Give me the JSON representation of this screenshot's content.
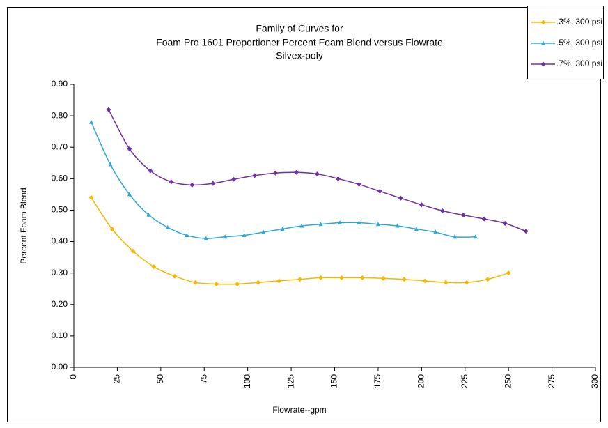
{
  "chart_data": {
    "type": "line",
    "title": [
      "Family of Curves for",
      "Foam Pro 1601 Proportioner Percent Foam Blend versus Flowrate",
      "Silvex-poly"
    ],
    "x_label": "Flowrate--gpm",
    "y_label": "Percent Foam Blend",
    "xlim": [
      0,
      300
    ],
    "xticks": [
      0,
      25,
      50,
      75,
      100,
      125,
      150,
      175,
      200,
      225,
      250,
      275,
      300
    ],
    "ylim": [
      0,
      0.9
    ],
    "yticks": [
      {
        "value": 0,
        "label": "0.00"
      },
      {
        "value": 0.1,
        "label": "0.10"
      },
      {
        "value": 0.2,
        "label": "0.20"
      },
      {
        "value": 0.3,
        "label": "0.30"
      },
      {
        "value": 0.4,
        "label": "0.40"
      },
      {
        "value": 0.5,
        "label": "0.50"
      },
      {
        "value": 0.6,
        "label": "0.60"
      },
      {
        "value": 0.7,
        "label": "0.70"
      },
      {
        "value": 0.8,
        "label": "0.80"
      },
      {
        "value": 0.9,
        "label": "0.90"
      }
    ],
    "legend": "top-right",
    "series": [
      {
        "name": ".3%, 300 psi",
        "color": "#f5b800",
        "marker": "diamond",
        "x": [
          10,
          22,
          34,
          46,
          58,
          70,
          82,
          94,
          106,
          118,
          130,
          142,
          154,
          166,
          178,
          190,
          202,
          214,
          226,
          238,
          250
        ],
        "values": [
          0.54,
          0.44,
          0.37,
          0.32,
          0.29,
          0.27,
          0.265,
          0.265,
          0.27,
          0.275,
          0.28,
          0.285,
          0.285,
          0.285,
          0.283,
          0.28,
          0.275,
          0.27,
          0.27,
          0.28,
          0.3
        ]
      },
      {
        "name": ".5%, 300 psi",
        "color": "#2ea8d8",
        "marker": "triangle",
        "x": [
          10,
          21,
          32,
          43,
          54,
          65,
          76,
          87,
          98,
          109,
          120,
          131,
          142,
          153,
          164,
          175,
          186,
          197,
          208,
          219,
          231
        ],
        "values": [
          0.78,
          0.645,
          0.55,
          0.485,
          0.445,
          0.42,
          0.41,
          0.415,
          0.42,
          0.43,
          0.44,
          0.45,
          0.455,
          0.46,
          0.46,
          0.455,
          0.45,
          0.44,
          0.43,
          0.415,
          0.415
        ]
      },
      {
        "name": ".7%, 300 psi",
        "color": "#7030a0",
        "marker": "diamond",
        "x": [
          20,
          32,
          44,
          56,
          68,
          80,
          92,
          104,
          116,
          128,
          140,
          152,
          164,
          176,
          188,
          200,
          212,
          224,
          236,
          248,
          260
        ],
        "values": [
          0.82,
          0.695,
          0.625,
          0.59,
          0.58,
          0.585,
          0.598,
          0.61,
          0.618,
          0.62,
          0.615,
          0.6,
          0.582,
          0.56,
          0.538,
          0.517,
          0.498,
          0.484,
          0.472,
          0.458,
          0.433
        ]
      }
    ]
  }
}
